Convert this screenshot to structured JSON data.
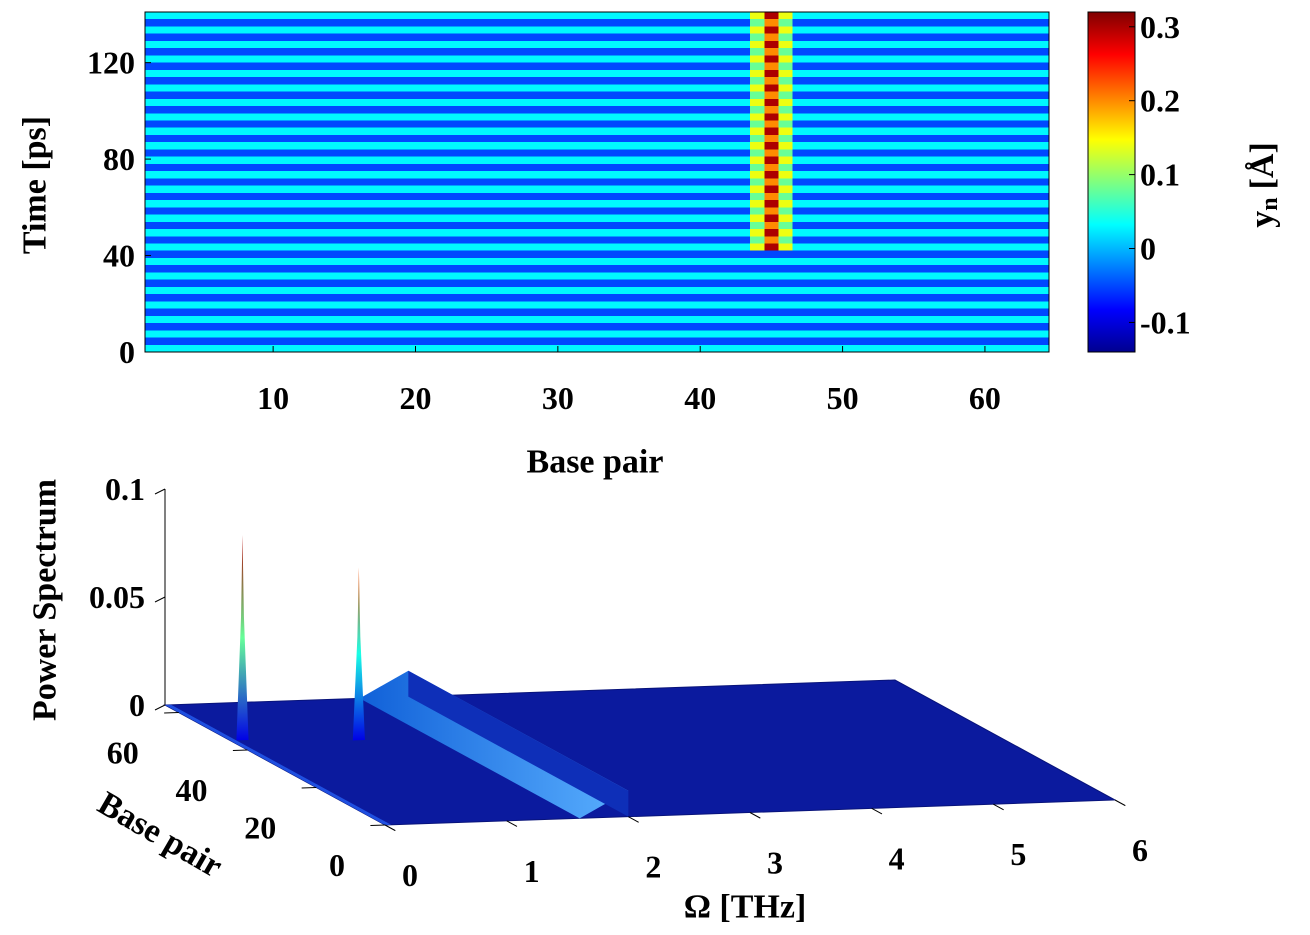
{
  "chart_data": [
    {
      "type": "heatmap",
      "xlabel": "Base pair",
      "ylabel": "Time [ps]",
      "xlim": [
        1,
        64.5
      ],
      "xticks": [
        10,
        20,
        30,
        40,
        50,
        60
      ],
      "ylim": [
        0,
        141
      ],
      "yticks": [
        0,
        40,
        80,
        120
      ],
      "xbins": [
        1,
        43.5,
        44.5,
        45.5,
        46.5,
        64.5
      ],
      "ybins": [
        0,
        3,
        6,
        9,
        12,
        15,
        18,
        21,
        24,
        27,
        30,
        33,
        36,
        39,
        42,
        45,
        48,
        51,
        54,
        57,
        60,
        63,
        66,
        69,
        72,
        75,
        78,
        81,
        84,
        87,
        90,
        93,
        96,
        99,
        102,
        105,
        108,
        111,
        114,
        117,
        120,
        123,
        126,
        129,
        132,
        135,
        138,
        141
      ],
      "z": [
        [
          0.03,
          0.03,
          0.03,
          0.03,
          0.03
        ],
        [
          -0.05,
          -0.05,
          -0.05,
          -0.05,
          -0.05
        ],
        [
          0.03,
          0.03,
          0.03,
          0.03,
          0.03
        ],
        [
          -0.05,
          -0.05,
          -0.05,
          -0.05,
          -0.05
        ],
        [
          0.03,
          0.03,
          0.03,
          0.03,
          0.03
        ],
        [
          -0.05,
          -0.05,
          -0.05,
          -0.05,
          -0.05
        ],
        [
          0.03,
          0.03,
          0.03,
          0.03,
          0.03
        ],
        [
          -0.05,
          -0.05,
          -0.05,
          -0.05,
          -0.05
        ],
        [
          0.03,
          0.03,
          0.03,
          0.03,
          0.03
        ],
        [
          -0.05,
          -0.05,
          -0.05,
          -0.05,
          -0.05
        ],
        [
          0.03,
          0.03,
          0.03,
          0.03,
          0.03
        ],
        [
          -0.05,
          -0.05,
          -0.05,
          -0.05,
          -0.05
        ],
        [
          0.03,
          0.03,
          0.03,
          0.03,
          0.03
        ],
        [
          -0.05,
          -0.05,
          -0.05,
          -0.05,
          -0.05
        ],
        [
          0.03,
          0.14,
          0.3,
          0.14,
          0.03
        ],
        [
          -0.05,
          0.08,
          0.2,
          0.08,
          -0.05
        ],
        [
          0.03,
          0.14,
          0.3,
          0.14,
          0.03
        ],
        [
          -0.05,
          0.08,
          0.2,
          0.08,
          -0.05
        ],
        [
          0.03,
          0.14,
          0.3,
          0.14,
          0.03
        ],
        [
          -0.05,
          0.08,
          0.2,
          0.08,
          -0.05
        ],
        [
          0.03,
          0.14,
          0.3,
          0.14,
          0.03
        ],
        [
          -0.05,
          0.08,
          0.2,
          0.08,
          -0.05
        ],
        [
          0.03,
          0.14,
          0.3,
          0.14,
          0.03
        ],
        [
          -0.05,
          0.08,
          0.2,
          0.08,
          -0.05
        ],
        [
          0.03,
          0.14,
          0.3,
          0.14,
          0.03
        ],
        [
          -0.05,
          0.08,
          0.2,
          0.08,
          -0.05
        ],
        [
          0.03,
          0.14,
          0.3,
          0.14,
          0.03
        ],
        [
          -0.05,
          0.08,
          0.2,
          0.08,
          -0.05
        ],
        [
          0.03,
          0.14,
          0.3,
          0.14,
          0.03
        ],
        [
          -0.05,
          0.08,
          0.2,
          0.08,
          -0.05
        ],
        [
          0.03,
          0.14,
          0.3,
          0.14,
          0.03
        ],
        [
          -0.05,
          0.08,
          0.2,
          0.08,
          -0.05
        ],
        [
          0.03,
          0.14,
          0.3,
          0.14,
          0.03
        ],
        [
          -0.05,
          0.08,
          0.2,
          0.08,
          -0.05
        ],
        [
          0.03,
          0.14,
          0.3,
          0.14,
          0.03
        ],
        [
          -0.05,
          0.08,
          0.2,
          0.08,
          -0.05
        ],
        [
          0.03,
          0.14,
          0.3,
          0.14,
          0.03
        ],
        [
          -0.05,
          0.08,
          0.2,
          0.08,
          -0.05
        ],
        [
          0.03,
          0.14,
          0.3,
          0.14,
          0.03
        ],
        [
          -0.05,
          0.08,
          0.2,
          0.08,
          -0.05
        ],
        [
          0.03,
          0.14,
          0.3,
          0.14,
          0.03
        ],
        [
          -0.05,
          0.08,
          0.2,
          0.08,
          -0.05
        ],
        [
          0.03,
          0.14,
          0.3,
          0.14,
          0.03
        ],
        [
          -0.05,
          0.08,
          0.2,
          0.08,
          -0.05
        ],
        [
          0.03,
          0.14,
          0.3,
          0.14,
          0.03
        ],
        [
          -0.05,
          0.08,
          0.2,
          0.08,
          -0.05
        ],
        [
          0.03,
          0.14,
          0.3,
          0.14,
          0.03
        ]
      ],
      "clim": [
        -0.14,
        0.32
      ],
      "colorbar_ticks": [
        -0.1,
        0,
        0.1,
        0.2,
        0.3
      ],
      "colorbar_label": "y",
      "colorbar_label_sub": "n",
      "colorbar_label_unit": "[Å]"
    },
    {
      "type": "surface3d",
      "xlabel": "Ω  [THz]",
      "ylabel": "Base pair",
      "zlabel": "Power Spectrum",
      "xlim": [
        0,
        6
      ],
      "xticks": [
        0,
        1,
        2,
        3,
        4,
        5,
        6
      ],
      "ylim": [
        0,
        64
      ],
      "yticks": [
        0,
        20,
        40,
        60
      ],
      "zlim": [
        0,
        0.1
      ],
      "zticks": [
        0,
        0.05,
        0.1
      ],
      "peaks": {
        "x": [
          0.1,
          1.0
        ],
        "y": [
          45,
          43
        ],
        "z": [
          0.095,
          0.08
        ]
      },
      "ridge": {
        "x_start": 1.6,
        "x_end": 2.0,
        "height": 0.012
      }
    }
  ]
}
